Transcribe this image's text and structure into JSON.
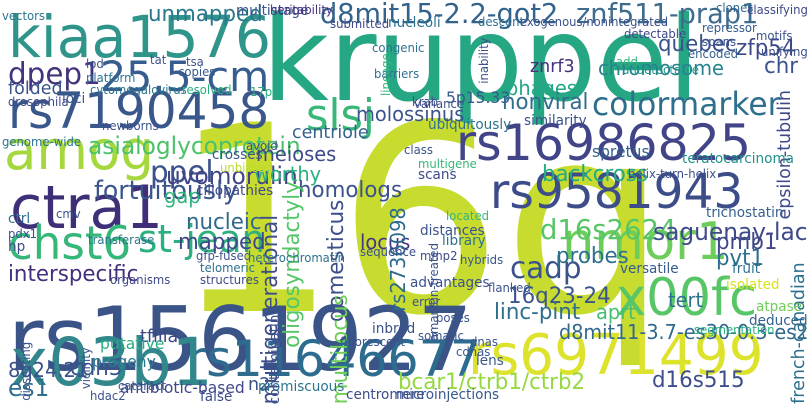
{
  "words": [
    {
      "text": "kruppel",
      "color": "#26a784"
    },
    {
      "text": "16q",
      "color": "#c8dc30"
    },
    {
      "text": "rs1561927",
      "color": "#3a5488"
    },
    {
      "text": "kiaa1576",
      "color": "#2f958b"
    },
    {
      "text": "rs7190458",
      "color": "#39578b"
    },
    {
      "text": "rs16986825",
      "color": "#424488"
    },
    {
      "text": "rs9581943",
      "color": "#3c4d8a"
    },
    {
      "text": "rs6971499",
      "color": "#dde22c"
    },
    {
      "text": "rs11646677",
      "color": "#2d6c8f"
    },
    {
      "text": "x03b1",
      "color": "#32878d"
    },
    {
      "text": "x00fc",
      "color": "#58c566"
    },
    {
      "text": "nmor1",
      "color": "#6ccd5a"
    },
    {
      "text": "ctra1",
      "color": "#3f2e78"
    },
    {
      "text": "chst6",
      "color": "#35b779"
    },
    {
      "text": "amog",
      "color": "#a5d83c"
    },
    {
      "text": "25.5-cm",
      "color": "#365d8d"
    },
    {
      "text": "d8mit15-2.2-got2",
      "color": "#33638d"
    },
    {
      "text": "znf511-prap1",
      "color": "#3e6c8e"
    },
    {
      "text": "slsj",
      "color": "#37b878"
    },
    {
      "text": "dpep1",
      "color": "#46337e"
    },
    {
      "text": "colormarker",
      "color": "#2e6f8e"
    },
    {
      "text": "asialoglycoprotein",
      "color": "#4bc16a"
    },
    {
      "text": "ppel",
      "color": "#3b518b"
    },
    {
      "text": "st-jean",
      "color": "#2cb17e"
    },
    {
      "text": "d16s2624",
      "color": "#58c566"
    },
    {
      "text": "cadp",
      "color": "#3a538b"
    },
    {
      "text": "uvomorulin",
      "color": "#414487"
    },
    {
      "text": "unmapped",
      "color": "#2a788e"
    },
    {
      "text": "chromosome",
      "color": "#26828e"
    },
    {
      "text": "quebec",
      "color": "#3a528b"
    },
    {
      "text": "zfp54",
      "color": "#3f4889"
    },
    {
      "text": "chr",
      "color": "#3b528b"
    },
    {
      "text": "epsilon-tubulin",
      "color": "#3e4a89"
    },
    {
      "text": "phages",
      "color": "#22a785"
    },
    {
      "text": "znrf3",
      "color": "#46307e"
    },
    {
      "text": "5p15.33",
      "color": "#38588c"
    },
    {
      "text": "nonviral",
      "color": "#2f6c8e"
    },
    {
      "text": "backcross",
      "color": "#25ab82"
    },
    {
      "text": "molossinus",
      "color": "#3b538b"
    },
    {
      "text": "centriole",
      "color": "#33638d"
    },
    {
      "text": "meioses",
      "color": "#3e4989"
    },
    {
      "text": "worthy",
      "color": "#2ab07f"
    },
    {
      "text": "homologs",
      "color": "#3b528b"
    },
    {
      "text": "oligosyndactyly",
      "color": "#54c568"
    },
    {
      "text": "multigenerational",
      "color": "#3d4d8a"
    },
    {
      "text": "domesticus",
      "color": "#3c4f8a"
    },
    {
      "text": "locus",
      "color": "#453781"
    },
    {
      "text": "rs2736098",
      "color": "#2f6b8e"
    },
    {
      "text": "interspecific",
      "color": "#46307e"
    },
    {
      "text": "fortuitously",
      "color": "#3a548c"
    },
    {
      "text": "nucleic",
      "color": "#31688e"
    },
    {
      "text": "mapped",
      "color": "#3f4788"
    },
    {
      "text": "gap",
      "color": "#2fb47c"
    },
    {
      "text": "saguenay-lac",
      "color": "#3e4a89"
    },
    {
      "text": "probes",
      "color": "#2e6f8e"
    },
    {
      "text": "pvt1",
      "color": "#2d708e"
    },
    {
      "text": "pmb1",
      "color": "#3f4788"
    },
    {
      "text": "multilocus",
      "color": "#6ece58"
    },
    {
      "text": "16q23-24",
      "color": "#3a548c"
    },
    {
      "text": "aprt",
      "color": "#44bf70"
    },
    {
      "text": "linc-pint",
      "color": "#2e6e8e"
    },
    {
      "text": "d8mit11-3.7-es30-0.3-es2",
      "color": "#31688e"
    },
    {
      "text": "bcar1/ctrb1/ctrb2",
      "color": "#95d840"
    },
    {
      "text": "d16s515",
      "color": "#3d4e8a"
    },
    {
      "text": "french-canadian",
      "color": "#2d718e"
    },
    {
      "text": "tfiiia",
      "color": "#3f4788"
    },
    {
      "text": "cdh3",
      "color": "#38588c"
    },
    {
      "text": "8q24.21",
      "color": "#3b528b"
    },
    {
      "text": "es1",
      "color": "#2e6e8e"
    },
    {
      "text": "putative",
      "color": "#26ad81"
    },
    {
      "text": "progeny",
      "color": "#2a788e"
    },
    {
      "text": "antibiotic-based",
      "color": "#3f4889"
    },
    {
      "text": "n2",
      "color": "#3b528b"
    },
    {
      "text": "false",
      "color": "#3e4a89"
    },
    {
      "text": "promiscuous",
      "color": "#2c738e"
    },
    {
      "text": "centromere",
      "color": "#3e4a89"
    },
    {
      "text": "microinjections",
      "color": "#38598c"
    },
    {
      "text": "tert",
      "color": "#2c738e"
    },
    {
      "text": "atpase",
      "color": "#6ece58"
    },
    {
      "text": "fruit",
      "color": "#2d708e"
    },
    {
      "text": "versatile",
      "color": "#365c8d"
    },
    {
      "text": "deduced",
      "color": "#33638d"
    },
    {
      "text": "segmentation",
      "color": "#2ab07f"
    },
    {
      "text": "isolated",
      "color": "#d8e219"
    },
    {
      "text": "trichostatin",
      "color": "#355f8d"
    },
    {
      "text": "teratocarcinoma",
      "color": "#21918c"
    },
    {
      "text": "helix-turn-helix",
      "color": "#3b528b"
    },
    {
      "text": "spretus",
      "color": "#33638d"
    },
    {
      "text": "scans",
      "color": "#3e4a89"
    },
    {
      "text": "multigene",
      "color": "#35b779"
    },
    {
      "text": "ciliopathies",
      "color": "#3f4889"
    },
    {
      "text": "crosses",
      "color": "#3a548c"
    },
    {
      "text": "unbiased",
      "color": "#bade28"
    },
    {
      "text": "similarity",
      "color": "#3b528b"
    },
    {
      "text": "ubiquitously",
      "color": "#2c738e"
    },
    {
      "text": "variance",
      "color": "#3b528b"
    },
    {
      "text": "krab",
      "color": "#3e4989"
    },
    {
      "text": "vectors",
      "color": "#2a788e"
    },
    {
      "text": "multistage",
      "color": "#3b528b"
    },
    {
      "text": "heritability",
      "color": "#46307e"
    },
    {
      "text": "submitted",
      "color": "#3f4788"
    },
    {
      "text": "nucleoli",
      "color": "#2c738e"
    },
    {
      "text": "descent",
      "color": "#2d708e"
    },
    {
      "text": "exogenous/nonintegrated",
      "color": "#3b528b"
    },
    {
      "text": "clones",
      "color": "#31688e"
    },
    {
      "text": "classifying",
      "color": "#3f4889"
    },
    {
      "text": "repressor",
      "color": "#365c8d"
    },
    {
      "text": "spans",
      "color": "#3b528b"
    },
    {
      "text": "motifs",
      "color": "#3b528b"
    },
    {
      "text": "unifying",
      "color": "#3b528b"
    },
    {
      "text": "encoded",
      "color": "#33638d"
    },
    {
      "text": "detectable",
      "color": "#3f4788"
    },
    {
      "text": "undetectable",
      "color": "#21918c"
    },
    {
      "text": "inability",
      "color": "#3b528b"
    },
    {
      "text": "congenic",
      "color": "#2d718e"
    },
    {
      "text": "barriers",
      "color": "#2d708e"
    },
    {
      "text": "lineage",
      "color": "#35b779"
    },
    {
      "text": "add",
      "color": "#2fb47c"
    },
    {
      "text": "tat",
      "color": "#3b528b"
    },
    {
      "text": "tsa",
      "color": "#3b528b"
    },
    {
      "text": "platform",
      "color": "#2c738e"
    },
    {
      "text": "lod",
      "color": "#3b528b"
    },
    {
      "text": "copies",
      "color": "#38598c"
    },
    {
      "text": "cytomegalovirus",
      "color": "#2c738e"
    },
    {
      "text": "resolved",
      "color": "#2ab07f"
    },
    {
      "text": "17p",
      "color": "#2ab07f"
    },
    {
      "text": "drosophila",
      "color": "#3e4a89"
    },
    {
      "text": "loci",
      "color": "#38598c"
    },
    {
      "text": "folded",
      "color": "#3a548c"
    },
    {
      "text": "genome-wide",
      "color": "#2c738e"
    },
    {
      "text": "newborns",
      "color": "#3b528b"
    },
    {
      "text": "ctrl",
      "color": "#2d708e"
    },
    {
      "text": "cmv",
      "color": "#3b528b"
    },
    {
      "text": "pdx1",
      "color": "#3b528b"
    },
    {
      "text": "hp",
      "color": "#3e4a89"
    },
    {
      "text": "transferase",
      "color": "#2c738e"
    },
    {
      "text": "gfp-fused",
      "color": "#3b528b"
    },
    {
      "text": "heterochromatin",
      "color": "#2d708e"
    },
    {
      "text": "telomeric",
      "color": "#2d708e"
    },
    {
      "text": "organisms",
      "color": "#3e4a89"
    },
    {
      "text": "structures",
      "color": "#3e4a89"
    },
    {
      "text": "contaminating",
      "color": "#3b528b"
    },
    {
      "text": "sequence",
      "color": "#3b528b"
    },
    {
      "text": "amanitin-treated",
      "color": "#3b528b"
    },
    {
      "text": "advantages",
      "color": "#3b528b"
    },
    {
      "text": "distances",
      "color": "#3b528b"
    },
    {
      "text": "library",
      "color": "#2c738e"
    },
    {
      "text": "located",
      "color": "#35b779"
    },
    {
      "text": "flanked",
      "color": "#3b528b"
    },
    {
      "text": "hybrids",
      "color": "#38598c"
    },
    {
      "text": "mmp2",
      "color": "#3e4a89"
    },
    {
      "text": "error",
      "color": "#3b528b"
    },
    {
      "text": "poses",
      "color": "#3b528b"
    },
    {
      "text": "inbred",
      "color": "#3b528b"
    },
    {
      "text": "fluorescent",
      "color": "#3b528b"
    },
    {
      "text": "somatic",
      "color": "#3b528b"
    },
    {
      "text": "dnas",
      "color": "#3b528b"
    },
    {
      "text": "cdnas",
      "color": "#38598c"
    },
    {
      "text": "lens",
      "color": "#38598c"
    },
    {
      "text": "dissecting",
      "color": "#3b528b"
    },
    {
      "text": "vicinity",
      "color": "#3b528b"
    },
    {
      "text": "cataract",
      "color": "#3b528b"
    },
    {
      "text": "hdac2",
      "color": "#3b528b"
    },
    {
      "text": "avoid",
      "color": "#3b528b"
    },
    {
      "text": "class",
      "color": "#3b528b"
    }
  ]
}
